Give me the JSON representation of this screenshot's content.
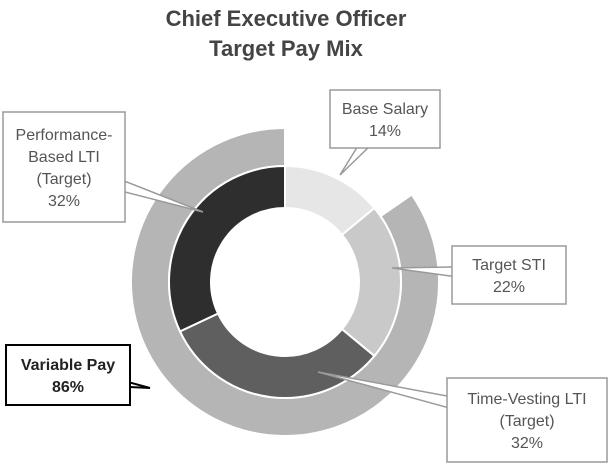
{
  "chart_data": {
    "type": "pie",
    "title_lines": [
      "Chief Executive Officer",
      "Target Pay Mix"
    ],
    "inner_ring": [
      {
        "label_lines": [
          "Base Salary",
          "14%"
        ],
        "value": 14,
        "color": "#e6e6e6"
      },
      {
        "label_lines": [
          "Target STI",
          "22%"
        ],
        "value": 22,
        "color": "#c9c9c9"
      },
      {
        "label_lines": [
          "Time-Vesting LTI",
          "(Target)",
          "32%"
        ],
        "value": 32,
        "color": "#5f5f5f"
      },
      {
        "label_lines": [
          "Performance-",
          "Based LTI",
          "(Target)",
          "32%"
        ],
        "value": 32,
        "color": "#2e2e2e"
      }
    ],
    "outer_ring": [
      {
        "label_lines": [
          "Variable Pay",
          "86%"
        ],
        "value": 86,
        "color": "#b5b5b5"
      }
    ]
  }
}
